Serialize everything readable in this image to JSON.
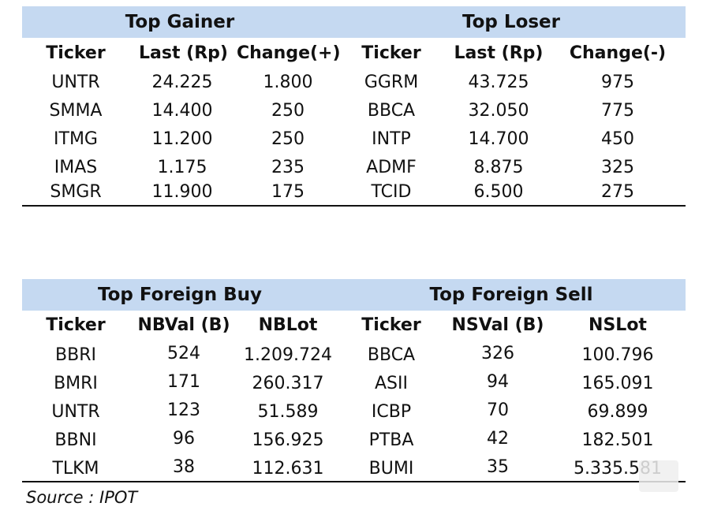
{
  "top": {
    "gainer_title": "Top Gainer",
    "loser_title": "Top Loser",
    "headers": [
      "Ticker",
      "Last (Rp)",
      "Change(+)",
      "Ticker",
      "Last (Rp)",
      "Change(-)"
    ],
    "rows": [
      [
        "UNTR",
        "24.225",
        "1.800",
        "GGRM",
        "43.725",
        "975"
      ],
      [
        "SMMA",
        "14.400",
        "250",
        "BBCA",
        "32.050",
        "775"
      ],
      [
        "ITMG",
        "11.200",
        "250",
        "INTP",
        "14.700",
        "450"
      ],
      [
        "IMAS",
        "1.175",
        "235",
        "ADMF",
        "8.875",
        "325"
      ],
      [
        "SMGR",
        "11.900",
        "175",
        "TCID",
        "6.500",
        "275"
      ]
    ]
  },
  "foreign": {
    "buy_title": "Top Foreign Buy",
    "sell_title": "Top Foreign Sell",
    "headers": [
      "Ticker",
      "NBVal (B)",
      "NBLot",
      "Ticker",
      "NSVal (B)",
      "NSLot"
    ],
    "rows": [
      [
        "BBRI",
        "524",
        "1.209.724",
        "BBCA",
        "326",
        "100.796"
      ],
      [
        "BMRI",
        "171",
        "260.317",
        "ASII",
        "94",
        "165.091"
      ],
      [
        "UNTR",
        "123",
        "51.589",
        "ICBP",
        "70",
        "69.899"
      ],
      [
        "BBNI",
        "96",
        "156.925",
        "PTBA",
        "42",
        "182.501"
      ],
      [
        "TLKM",
        "38",
        "112.631",
        "BUMI",
        "35",
        "5.335.581"
      ]
    ]
  },
  "source": "Source : IPOT",
  "colors": {
    "header_band": "#c5d9f1",
    "text": "#111111",
    "rule": "#111111"
  }
}
